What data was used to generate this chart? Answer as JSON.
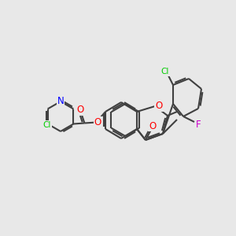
{
  "background_color": "#e8e8e8",
  "bond_color": "#404040",
  "bond_lw": 1.5,
  "atom_colors": {
    "O": "#ff0000",
    "N": "#0000ff",
    "Cl_green": "#00cc00",
    "F": "#cc00cc",
    "C": "#404040"
  },
  "font_size": 9,
  "font_size_small": 8
}
